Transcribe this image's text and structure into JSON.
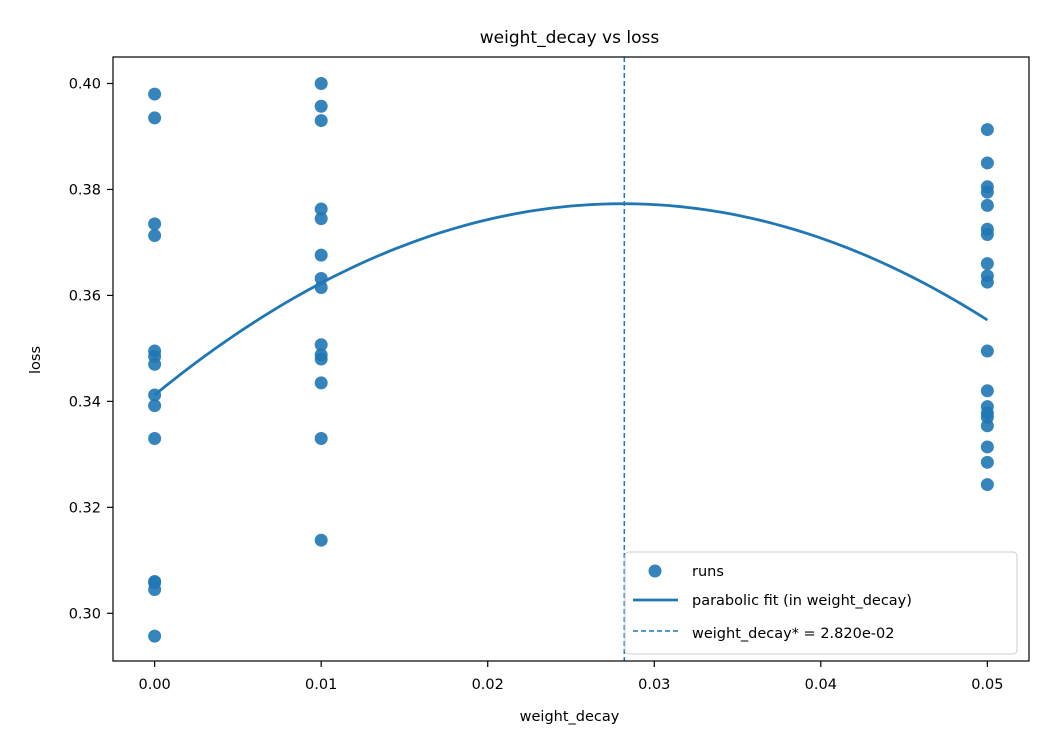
{
  "chart_data": {
    "type": "scatter",
    "title": "weight_decay vs loss",
    "xlabel": "weight_decay",
    "ylabel": "loss",
    "xlim": [
      -0.0025,
      0.0525
    ],
    "ylim": [
      0.291,
      0.405
    ],
    "xticks": [
      0.0,
      0.01,
      0.02,
      0.03,
      0.04,
      0.05
    ],
    "xtick_labels": [
      "0.00",
      "0.01",
      "0.02",
      "0.03",
      "0.04",
      "0.05"
    ],
    "yticks": [
      0.3,
      0.32,
      0.34,
      0.36,
      0.38,
      0.4
    ],
    "ytick_labels": [
      "0.30",
      "0.32",
      "0.34",
      "0.36",
      "0.38",
      "0.40"
    ],
    "grid": false,
    "legend_position": "lower-right",
    "series": [
      {
        "name": "runs",
        "kind": "scatter",
        "color": "#1f77b4",
        "points": [
          [
            0.0,
            0.398
          ],
          [
            0.0,
            0.3935
          ],
          [
            0.0,
            0.3735
          ],
          [
            0.0,
            0.3713
          ],
          [
            0.0,
            0.3495
          ],
          [
            0.0,
            0.3485
          ],
          [
            0.0,
            0.347
          ],
          [
            0.0,
            0.3412
          ],
          [
            0.0,
            0.3392
          ],
          [
            0.0,
            0.333
          ],
          [
            0.0,
            0.306
          ],
          [
            0.0,
            0.3058
          ],
          [
            0.0,
            0.3045
          ],
          [
            0.0,
            0.2957
          ],
          [
            0.01,
            0.4
          ],
          [
            0.01,
            0.3957
          ],
          [
            0.01,
            0.393
          ],
          [
            0.01,
            0.3763
          ],
          [
            0.01,
            0.3745
          ],
          [
            0.01,
            0.3676
          ],
          [
            0.01,
            0.3632
          ],
          [
            0.01,
            0.3615
          ],
          [
            0.01,
            0.3507
          ],
          [
            0.01,
            0.3488
          ],
          [
            0.01,
            0.348
          ],
          [
            0.01,
            0.3435
          ],
          [
            0.01,
            0.333
          ],
          [
            0.01,
            0.3138
          ],
          [
            0.05,
            0.3913
          ],
          [
            0.05,
            0.385
          ],
          [
            0.05,
            0.3805
          ],
          [
            0.05,
            0.3795
          ],
          [
            0.05,
            0.377
          ],
          [
            0.05,
            0.3725
          ],
          [
            0.05,
            0.3715
          ],
          [
            0.05,
            0.366
          ],
          [
            0.05,
            0.3637
          ],
          [
            0.05,
            0.3625
          ],
          [
            0.05,
            0.3495
          ],
          [
            0.05,
            0.342
          ],
          [
            0.05,
            0.339
          ],
          [
            0.05,
            0.3378
          ],
          [
            0.05,
            0.337
          ],
          [
            0.05,
            0.3354
          ],
          [
            0.05,
            0.3314
          ],
          [
            0.05,
            0.3285
          ],
          [
            0.05,
            0.3243
          ]
        ]
      },
      {
        "name": "parabolic fit (in weight_decay)",
        "kind": "line",
        "color": "#1f77b4",
        "curve": "quadratic",
        "x": [
          0.0,
          0.01,
          0.02,
          0.0282,
          0.03,
          0.04,
          0.05
        ],
        "y": [
          0.3411,
          0.3625,
          0.3744,
          0.3773,
          0.3771,
          0.3706,
          0.3555
        ]
      },
      {
        "name": "weight_decay* = 2.820e-02",
        "kind": "vline",
        "color": "#1f77b4",
        "style": "dashed",
        "x": 0.0282
      }
    ]
  }
}
